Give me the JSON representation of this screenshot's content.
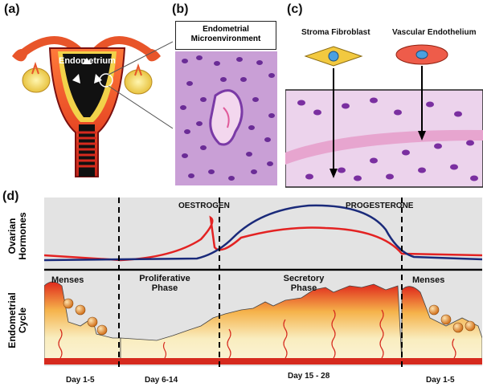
{
  "panels": {
    "a": {
      "letter": "(a)",
      "label": "Endometrium"
    },
    "b": {
      "letter": "(b)",
      "title": "Endometrial Microenvironment"
    },
    "c": {
      "letter": "(c)",
      "cell1": "Stroma Fibroblast",
      "cell2": "Vascular Endothelium"
    },
    "d": {
      "letter": "(d)",
      "row_hormones": "Ovarian Hormones",
      "row_cycle": "Endometrial Cycle",
      "hormone_oestrogen": "OESTROGEN",
      "hormone_progesterone": "PROGESTERONE",
      "phases": [
        "Menses",
        "Proliferative Phase",
        "Secretory Phase",
        "Menses"
      ],
      "days": [
        "Day 1-5",
        "Day 6-14",
        "Day 15 - 28",
        "Day 1-5"
      ]
    }
  },
  "colors": {
    "oestrogen": "#e32222",
    "progesterone": "#1a2a7a",
    "tissue_red": "#e0291c",
    "tissue_cream": "#f7e9b8",
    "stain_purple": "#7b3fa6",
    "stain_pink": "#e3a9d6"
  }
}
